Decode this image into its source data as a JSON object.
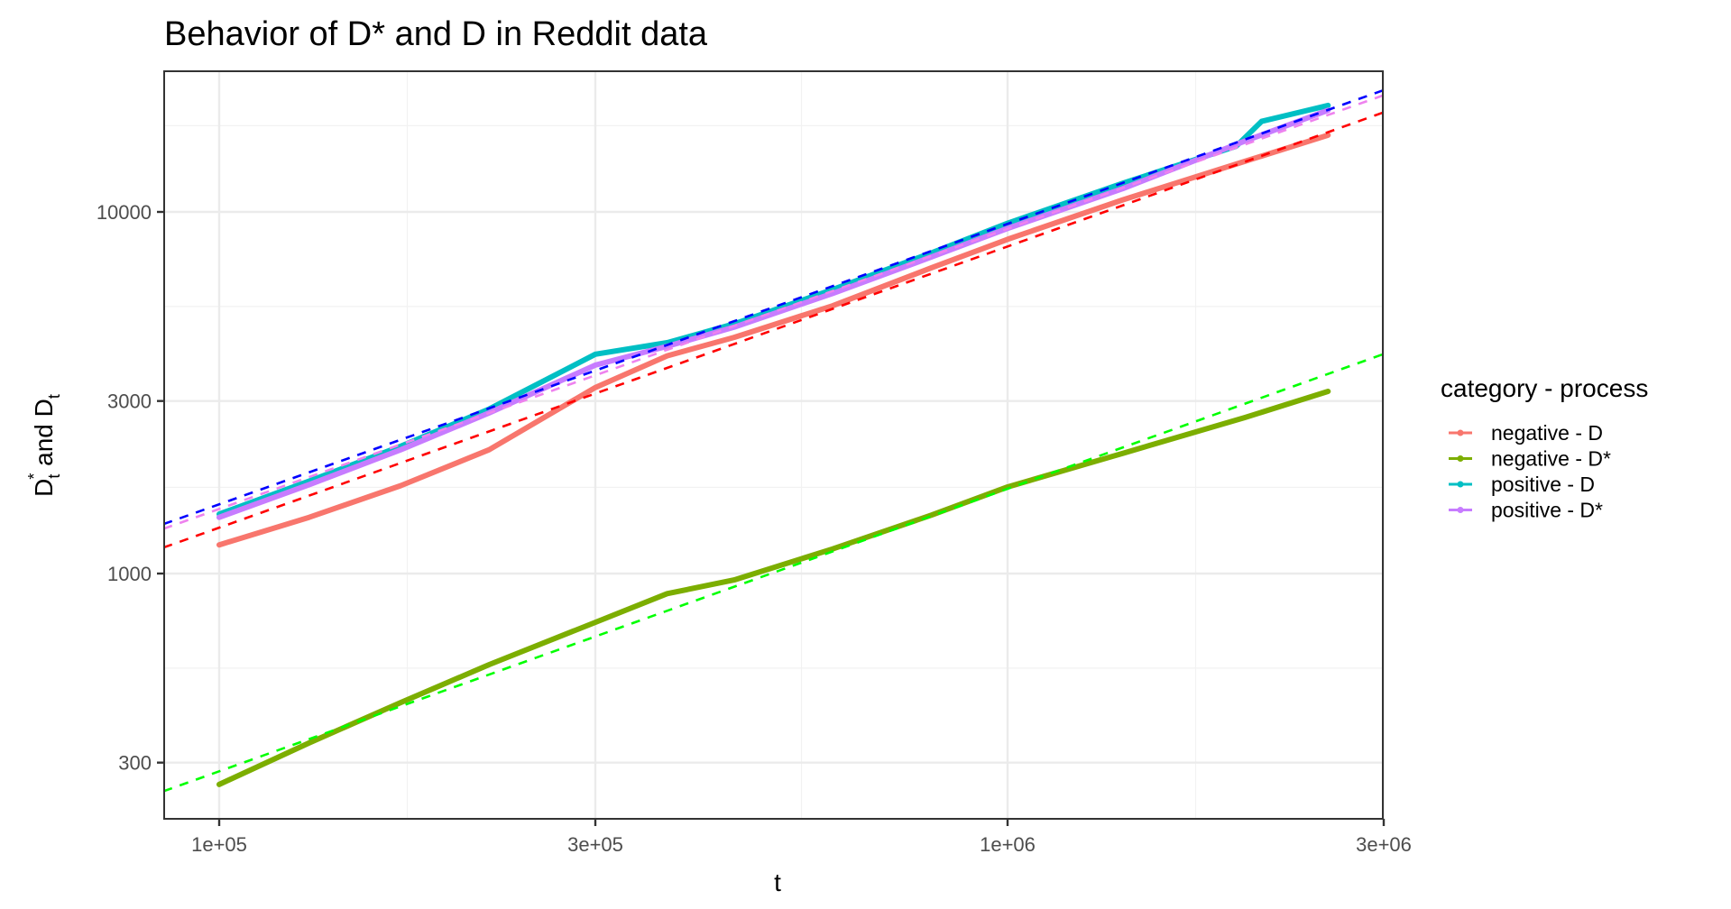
{
  "chart_data": {
    "type": "line",
    "title": "Behavior of D* and D in Reddit data",
    "xlabel": "t",
    "ylabel": "D*_t and D_t",
    "x_scale": "log10",
    "y_scale": "log10",
    "xlim": [
      85000,
      3050000
    ],
    "ylim": [
      235,
      28000
    ],
    "x_ticks": [
      {
        "value": 100000,
        "label": "1e+05"
      },
      {
        "value": 300000,
        "label": "3e+05"
      },
      {
        "value": 1000000,
        "label": "1e+06"
      },
      {
        "value": 3000000,
        "label": "3e+06"
      }
    ],
    "y_ticks": [
      {
        "value": 300,
        "label": "300"
      },
      {
        "value": 1000,
        "label": "1000"
      },
      {
        "value": 3000,
        "label": "3000"
      },
      {
        "value": 10000,
        "label": "10000"
      }
    ],
    "grid": true,
    "legend": {
      "title": "category - process",
      "position": "right",
      "entries": [
        {
          "label": "negative - D",
          "color": "#F8766D"
        },
        {
          "label": "negative - D*",
          "color": "#7CAE00"
        },
        {
          "label": "positive - D",
          "color": "#00BFC4"
        },
        {
          "label": "positive - D*",
          "color": "#C77CFF"
        }
      ]
    },
    "series": [
      {
        "name": "negative - D",
        "color": "#F8766D",
        "x": [
          100000,
          130000,
          170000,
          220000,
          300000,
          370000,
          450000,
          600000,
          800000,
          1000000,
          1400000,
          2000000,
          2550000
        ],
        "values": [
          1200,
          1430,
          1750,
          2200,
          3270,
          4000,
          4500,
          5500,
          7000,
          8400,
          10800,
          13800,
          16300
        ]
      },
      {
        "name": "negative - D*",
        "color": "#7CAE00",
        "x": [
          100000,
          130000,
          170000,
          220000,
          300000,
          370000,
          450000,
          600000,
          800000,
          1000000,
          1400000,
          2000000,
          2550000
        ],
        "values": [
          261,
          340,
          440,
          560,
          733,
          880,
          960,
          1170,
          1450,
          1735,
          2150,
          2700,
          3190
        ]
      },
      {
        "name": "positive - D",
        "color": "#00BFC4",
        "x": [
          100000,
          130000,
          170000,
          220000,
          300000,
          370000,
          450000,
          600000,
          800000,
          1000000,
          1400000,
          1950000,
          2100000,
          2550000
        ],
        "values": [
          1460,
          1800,
          2250,
          2850,
          4040,
          4350,
          4900,
          6100,
          7700,
          9300,
          12000,
          15200,
          17800,
          19700
        ]
      },
      {
        "name": "positive - D*",
        "color": "#C77CFF",
        "x": [
          100000,
          130000,
          170000,
          220000,
          300000,
          370000,
          450000,
          600000,
          800000,
          1000000,
          1400000,
          2000000,
          2550000
        ],
        "values": [
          1430,
          1760,
          2200,
          2780,
          3770,
          4250,
          4800,
          5950,
          7500,
          9000,
          11600,
          15700,
          19100
        ]
      }
    ],
    "fit_lines": [
      {
        "name": "positive - D fit",
        "color": "#0000FF",
        "style": "dashed",
        "x": [
          85000,
          3050000
        ],
        "values": [
          1370,
          22000
        ]
      },
      {
        "name": "positive - D* fit",
        "color": "#EE82EE",
        "style": "dashed",
        "x": [
          85000,
          3050000
        ],
        "values": [
          1330,
          21300
        ]
      },
      {
        "name": "negative - D fit",
        "color": "#FF0000",
        "style": "dashed",
        "x": [
          85000,
          3050000
        ],
        "values": [
          1180,
          19100
        ]
      },
      {
        "name": "negative - D* fit",
        "color": "#00FF00",
        "style": "dashed",
        "x": [
          85000,
          3050000
        ],
        "values": [
          250,
          4100
        ]
      }
    ]
  }
}
